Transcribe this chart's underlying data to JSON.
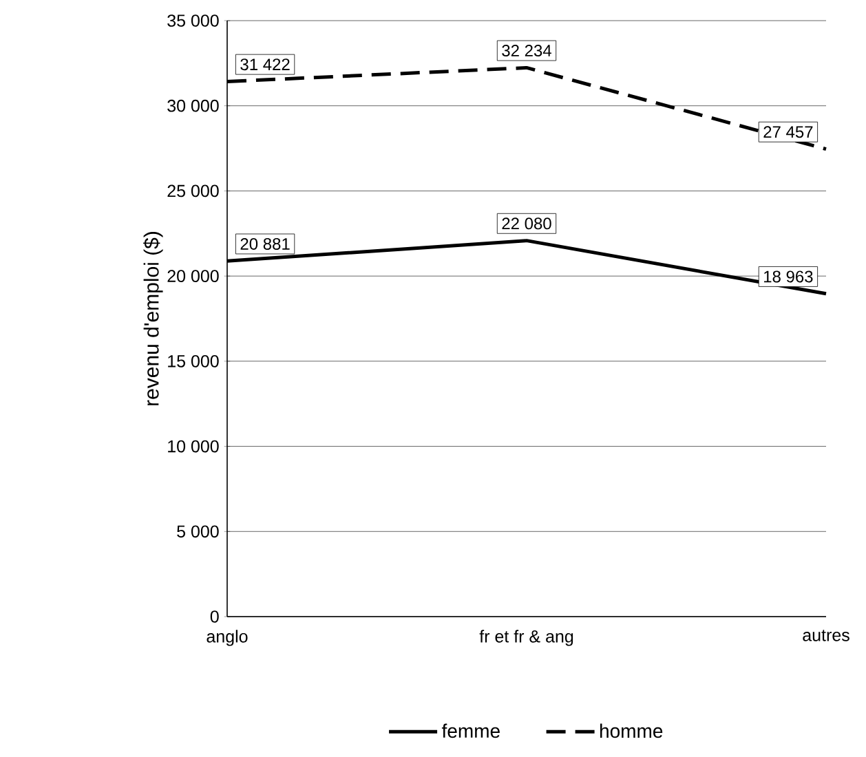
{
  "chart_data": {
    "type": "line",
    "ylabel": "revenu d'emploi ($)",
    "categories": [
      "anglo",
      "fr et fr & ang",
      "autres"
    ],
    "series": [
      {
        "name": "femme",
        "color": "#000000",
        "line_style": "solid",
        "values": [
          20881,
          22080,
          18963
        ],
        "value_labels": [
          "20 881",
          "22 080",
          "18 963"
        ]
      },
      {
        "name": "homme",
        "color": "#000000",
        "line_style": "dashed",
        "values": [
          31422,
          32234,
          27457
        ],
        "value_labels": [
          "31 422",
          "32 234",
          "27 457"
        ]
      }
    ],
    "ylim": [
      0,
      35000
    ],
    "yticks": [
      0,
      {
        "value": 5000,
        "label": "5 000"
      },
      {
        "value": 10000,
        "label": "10 000"
      },
      {
        "value": 15000,
        "label": "15 000"
      },
      {
        "value": 20000,
        "label": "20 000"
      },
      {
        "value": 25000,
        "label": "25 000"
      },
      {
        "value": 30000,
        "label": "30 000"
      },
      {
        "value": 35000,
        "label": "35 000"
      }
    ],
    "grid": "y",
    "legend": "bottom",
    "marker": "none"
  }
}
